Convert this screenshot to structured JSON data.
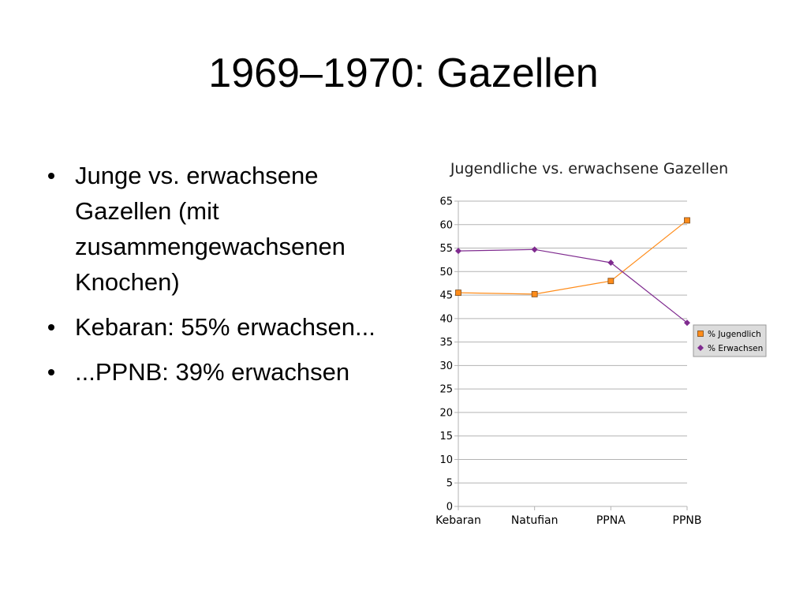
{
  "slide": {
    "title": "1969–1970: Gazellen",
    "bullets": [
      "Junge vs. erwachsene Gazellen (mit zusammengewachsenen Knochen)",
      "Kebaran: 55% erwachsen...",
      "...PPNB: 39% erwachsen"
    ]
  },
  "chart_data": {
    "type": "line",
    "title": "Jugendliche vs. erwachsene Gazellen",
    "categories": [
      "Kebaran",
      "Natufian",
      "PPNA",
      "PPNB"
    ],
    "ylim": [
      0,
      65
    ],
    "yticks": [
      0,
      5,
      10,
      15,
      20,
      25,
      30,
      35,
      40,
      45,
      50,
      55,
      60,
      65
    ],
    "grid": true,
    "legend": "right",
    "series": [
      {
        "name": "% Jugendlich",
        "color": "#ff8c1a",
        "marker": "square",
        "values": [
          45.5,
          45.2,
          48,
          60.9
        ]
      },
      {
        "name": "% Erwachsen",
        "color": "#7f2b8f",
        "marker": "diamond",
        "values": [
          54.4,
          54.7,
          51.9,
          39.1
        ]
      }
    ]
  }
}
